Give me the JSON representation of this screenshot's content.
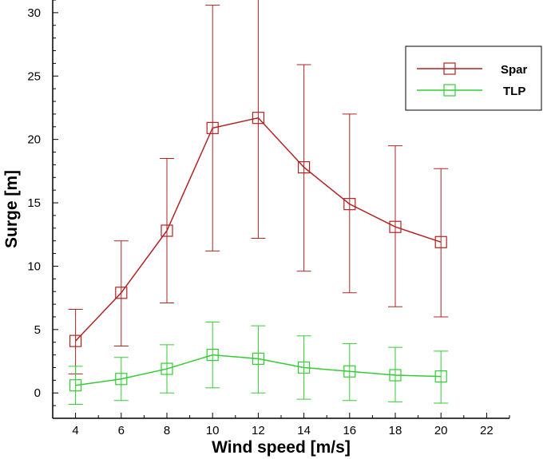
{
  "chart_data": {
    "type": "line",
    "xlabel": "Wind speed [m/s]",
    "ylabel": "Surge [m]",
    "xlim": [
      3,
      23
    ],
    "ylim": [
      -2,
      31
    ],
    "xticks": [
      4,
      6,
      8,
      10,
      12,
      14,
      16,
      18,
      20,
      22
    ],
    "yticks": [
      0,
      5,
      10,
      15,
      20,
      25,
      30
    ],
    "legend_position": "top-right",
    "grid": false,
    "series": [
      {
        "name": "Spar",
        "color": "#b22222",
        "marker": "square",
        "x": [
          4,
          6,
          8,
          10,
          12,
          14,
          16,
          18,
          20
        ],
        "y": [
          4.1,
          7.9,
          12.8,
          20.9,
          21.7,
          17.8,
          14.9,
          13.1,
          11.9
        ],
        "err_low": [
          1.5,
          3.7,
          7.1,
          11.2,
          12.2,
          9.6,
          7.9,
          6.8,
          6.0
        ],
        "err_high": [
          6.6,
          12.0,
          18.5,
          30.6,
          31.1,
          25.9,
          22.0,
          19.5,
          17.7
        ]
      },
      {
        "name": "TLP",
        "color": "#32cd32",
        "marker": "square",
        "x": [
          4,
          6,
          8,
          10,
          12,
          14,
          16,
          18,
          20
        ],
        "y": [
          0.6,
          1.1,
          1.9,
          3.0,
          2.7,
          2.0,
          1.7,
          1.4,
          1.3
        ],
        "err_low": [
          -0.9,
          -0.6,
          0.0,
          0.4,
          0.0,
          -0.5,
          -0.6,
          -0.7,
          -0.8
        ],
        "err_high": [
          2.1,
          2.8,
          3.8,
          5.6,
          5.3,
          4.5,
          3.9,
          3.6,
          3.3
        ]
      }
    ]
  }
}
